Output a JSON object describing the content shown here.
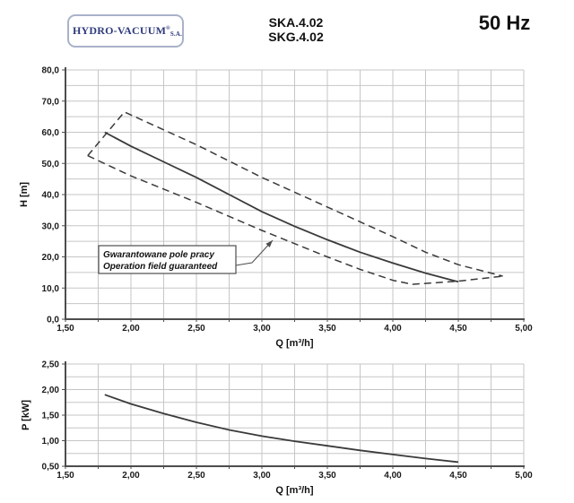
{
  "header": {
    "logo": {
      "text": "HYDRO-VACUUM",
      "registered": "®",
      "suffix": "S.A.",
      "brand_color": "#2e3a7c"
    },
    "models": [
      "SKA.4.02",
      "SKG.4.02"
    ],
    "frequency": "50 Hz"
  },
  "colors": {
    "curve": "#3a3a3a",
    "grid": "#c6c6c6",
    "axis": "#4d4d4d"
  },
  "chart_data": [
    {
      "type": "line",
      "title": "",
      "xlabel": "Q [m³/h]",
      "ylabel": "H [m]",
      "xlim": [
        1.5,
        5.0
      ],
      "ylim": [
        0,
        80
      ],
      "grid": true,
      "legend": "none",
      "x_major_step": 0.5,
      "x_minor_step": 0.25,
      "y_major_step": 10,
      "y_minor_step": 5,
      "x_tick_labels": [
        "1,50",
        "2,00",
        "2,50",
        "3,00",
        "3,50",
        "4,00",
        "4,50",
        "5,00"
      ],
      "y_tick_labels": [
        "0,0",
        "10,0",
        "20,0",
        "30,0",
        "40,0",
        "50,0",
        "60,0",
        "70,0",
        "80,0"
      ],
      "series": [
        {
          "name": "pump-head-curve",
          "style": "solid",
          "points": [
            [
              1.8,
              60
            ],
            [
              2.0,
              55.5
            ],
            [
              2.25,
              50.5
            ],
            [
              2.5,
              45.5
            ],
            [
              2.75,
              40
            ],
            [
              3.0,
              34.5
            ],
            [
              3.25,
              29.8
            ],
            [
              3.5,
              25.5
            ],
            [
              3.75,
              21.5
            ],
            [
              4.0,
              18
            ],
            [
              4.25,
              14.8
            ],
            [
              4.5,
              12
            ]
          ]
        },
        {
          "name": "guaranteed-field-upper-boundary",
          "style": "dashed",
          "points": [
            [
              1.67,
              52.5
            ],
            [
              1.95,
              66.5
            ],
            [
              2.5,
              56
            ],
            [
              3.0,
              45.5
            ],
            [
              3.5,
              36
            ],
            [
              4.0,
              26.5
            ],
            [
              4.25,
              21.5
            ],
            [
              4.5,
              17.5
            ],
            [
              4.84,
              13.8
            ]
          ]
        },
        {
          "name": "guaranteed-field-lower-boundary",
          "style": "dashed",
          "points": [
            [
              1.67,
              52.5
            ],
            [
              2.0,
              46
            ],
            [
              2.5,
              37.5
            ],
            [
              3.0,
              28.5
            ],
            [
              3.5,
              20
            ],
            [
              3.75,
              16
            ],
            [
              4.0,
              12.5
            ],
            [
              4.15,
              11.2
            ],
            [
              4.5,
              12.2
            ],
            [
              4.84,
              13.8
            ]
          ]
        }
      ],
      "annotation": {
        "lines": [
          "Gwarantowane pole pracy",
          "Operation field guaranteed"
        ]
      }
    },
    {
      "type": "line",
      "title": "",
      "xlabel": "Q [m³/h]",
      "ylabel": "P [kW]",
      "xlim": [
        1.5,
        5.0
      ],
      "ylim": [
        0.5,
        2.5
      ],
      "grid": true,
      "legend": "none",
      "x_major_step": 0.5,
      "x_minor_step": 0.25,
      "y_major_step": 0.5,
      "y_minor_step": 0.25,
      "x_tick_labels": [
        "1,50",
        "2,00",
        "2,50",
        "3,00",
        "3,50",
        "4,00",
        "4,50",
        "5,00"
      ],
      "y_tick_labels": [
        "0,50",
        "1,00",
        "1,50",
        "2,00",
        "2,50"
      ],
      "series": [
        {
          "name": "power-curve",
          "style": "solid",
          "points": [
            [
              1.8,
              1.9
            ],
            [
              2.0,
              1.72
            ],
            [
              2.25,
              1.53
            ],
            [
              2.5,
              1.36
            ],
            [
              2.75,
              1.21
            ],
            [
              3.0,
              1.09
            ],
            [
              3.25,
              0.99
            ],
            [
              3.5,
              0.9
            ],
            [
              3.75,
              0.81
            ],
            [
              4.0,
              0.73
            ],
            [
              4.25,
              0.65
            ],
            [
              4.5,
              0.58
            ]
          ]
        }
      ]
    }
  ]
}
